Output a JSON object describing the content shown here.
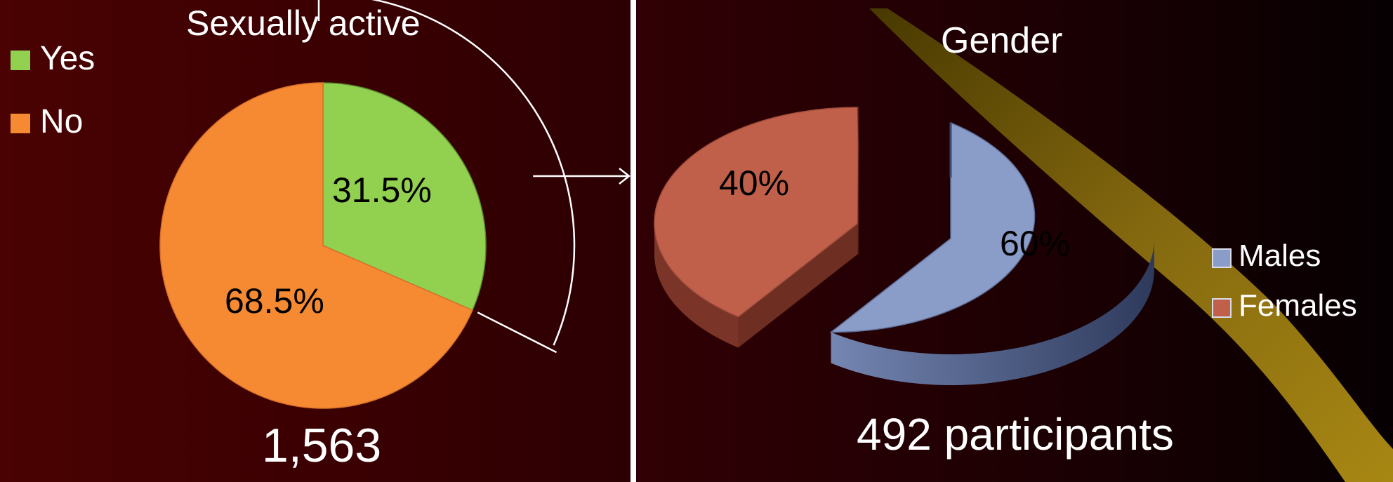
{
  "chart_data": [
    {
      "type": "pie",
      "title": "Sexually active",
      "categories": [
        "Yes",
        "No"
      ],
      "values": [
        31.5,
        68.5
      ],
      "value_labels": [
        "31.5%",
        "68.5%"
      ],
      "colors": [
        "#92d050",
        "#f68a33"
      ],
      "legend": {
        "placement": "top-left",
        "items": [
          "Yes",
          "No"
        ]
      },
      "total_label": "1,563"
    },
    {
      "type": "pie",
      "style": "3d-exploded",
      "title": "Gender",
      "categories": [
        "Males",
        "Females"
      ],
      "values": [
        60,
        40
      ],
      "value_labels": [
        "60%",
        "40%"
      ],
      "colors": [
        "#8a9cc8",
        "#c0604a"
      ],
      "legend": {
        "placement": "right",
        "items": [
          "Males",
          "Females"
        ]
      },
      "total_label": "492 participants"
    }
  ]
}
